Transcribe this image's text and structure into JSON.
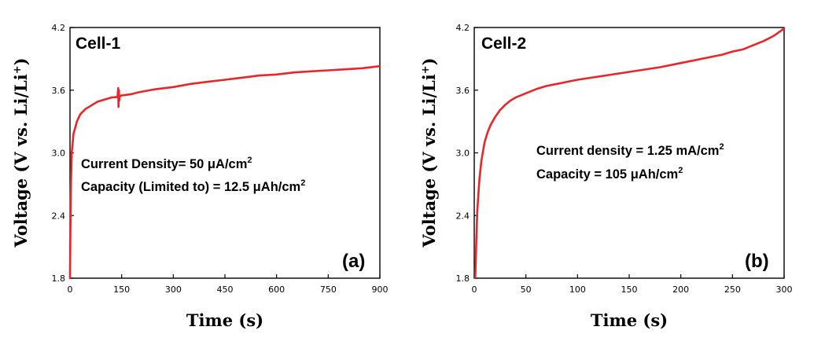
{
  "chart_data": [
    {
      "type": "line",
      "panel_title": "Cell-1",
      "panel_tag": "(a)",
      "xlabel": "Time (s)",
      "ylabel_main": "Voltage (V vs. Li/Li",
      "ylabel_sup": "+",
      "ylabel_end": ")",
      "xlim": [
        0,
        900
      ],
      "ylim": [
        1.8,
        4.2
      ],
      "xticks": [
        "0",
        "150",
        "300",
        "450",
        "600",
        "750",
        "900"
      ],
      "yticks": [
        "1.8",
        "2.4",
        "3.0",
        "3.6",
        "4.2"
      ],
      "annotations": [
        {
          "main": "Current Density= 50 μA/cm",
          "sup": "2"
        },
        {
          "main": "Capacity (Limited to) = 12.5 μAh/cm",
          "sup": "2"
        }
      ],
      "color": "#e8262a",
      "series": [
        {
          "x": [
            0,
            2,
            5,
            10,
            20,
            30,
            45,
            60,
            80,
            100,
            120,
            138,
            140,
            141,
            142,
            143,
            144,
            150,
            175,
            200,
            250,
            300,
            350,
            400,
            450,
            500,
            550,
            600,
            650,
            700,
            750,
            800,
            850,
            900
          ],
          "y": [
            1.8,
            2.6,
            3.0,
            3.18,
            3.3,
            3.37,
            3.42,
            3.45,
            3.49,
            3.51,
            3.53,
            3.535,
            3.62,
            3.44,
            3.6,
            3.5,
            3.54,
            3.55,
            3.56,
            3.58,
            3.61,
            3.63,
            3.66,
            3.68,
            3.7,
            3.72,
            3.74,
            3.75,
            3.77,
            3.78,
            3.79,
            3.8,
            3.81,
            3.83
          ]
        }
      ]
    },
    {
      "type": "line",
      "panel_title": "Cell-2",
      "panel_tag": "(b)",
      "xlabel": "Time (s)",
      "ylabel_main": "Voltage (V vs. Li/Li",
      "ylabel_sup": "+",
      "ylabel_end": ")",
      "xlim": [
        0,
        300
      ],
      "ylim": [
        1.8,
        4.2
      ],
      "xticks": [
        "0",
        "50",
        "100",
        "150",
        "200",
        "250",
        "300"
      ],
      "yticks": [
        "1.8",
        "2.4",
        "3.0",
        "3.6",
        "4.2"
      ],
      "annotations": [
        {
          "main": "Current density = 1.25 mA/cm",
          "sup": "2"
        },
        {
          "main": "Capacity = 105 μAh/cm",
          "sup": "2"
        }
      ],
      "color": "#e8262a",
      "series": [
        {
          "x": [
            1,
            2,
            3,
            5,
            7,
            10,
            13,
            16,
            20,
            25,
            30,
            35,
            40,
            45,
            50,
            60,
            70,
            80,
            90,
            100,
            120,
            140,
            160,
            180,
            200,
            220,
            240,
            250,
            260,
            270,
            280,
            290,
            300
          ],
          "y": [
            1.8,
            2.15,
            2.45,
            2.75,
            2.93,
            3.1,
            3.2,
            3.27,
            3.34,
            3.41,
            3.46,
            3.5,
            3.53,
            3.55,
            3.57,
            3.61,
            3.64,
            3.66,
            3.68,
            3.7,
            3.73,
            3.76,
            3.79,
            3.82,
            3.86,
            3.9,
            3.94,
            3.97,
            3.99,
            4.03,
            4.07,
            4.12,
            4.19
          ]
        }
      ]
    }
  ]
}
